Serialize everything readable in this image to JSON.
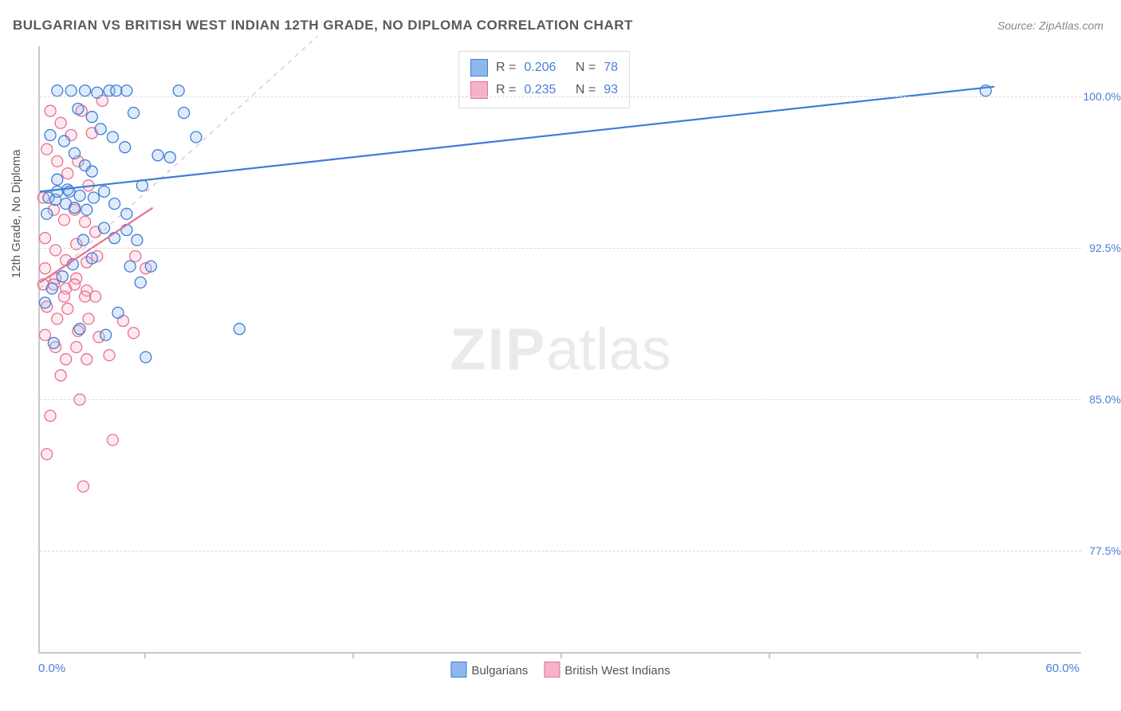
{
  "title": "BULGARIAN VS BRITISH WEST INDIAN 12TH GRADE, NO DIPLOMA CORRELATION CHART",
  "source": "Source: ZipAtlas.com",
  "yaxis_title": "12th Grade, No Diploma",
  "watermark_bold": "ZIP",
  "watermark_light": "atlas",
  "chart": {
    "type": "scatter",
    "background_color": "#ffffff",
    "grid_color": "#d8d8d8",
    "axis_color": "#c9c9c9",
    "tick_label_color": "#4a7fd6",
    "tick_fontsize": 14,
    "title_color": "#5a5a5a",
    "title_fontsize": 17,
    "xlim": [
      0,
      60
    ],
    "ylim": [
      72.5,
      102.5
    ],
    "ytick_step": 7.5,
    "ytick_labels": [
      "77.5%",
      "85.0%",
      "92.5%",
      "100.0%"
    ],
    "ytick_values": [
      77.5,
      85.0,
      92.5,
      100.0
    ],
    "xtick_positions": [
      6,
      18,
      30,
      42,
      54
    ],
    "xlabel_min": "0.0%",
    "xlabel_max": "60.0%",
    "marker_radius": 7,
    "marker_stroke_width": 1.3,
    "marker_fill_opacity": 0.28,
    "trend_line_width": 2.2
  },
  "stats": {
    "series1": {
      "R_label": "R =",
      "R": "0.206",
      "N_label": "N =",
      "N": "78"
    },
    "series2": {
      "R_label": "R =",
      "R": "0.235",
      "N_label": "N =",
      "N": "93"
    }
  },
  "series": [
    {
      "name": "Bulgarians",
      "color_stroke": "#3d7dd8",
      "color_fill": "#8fb7ec",
      "trend": {
        "x1": 0,
        "y1": 95.3,
        "x2": 55,
        "y2": 100.5
      },
      "points": [
        [
          1.0,
          100.3
        ],
        [
          1.8,
          100.3
        ],
        [
          2.6,
          100.3
        ],
        [
          3.3,
          100.2
        ],
        [
          4.0,
          100.3
        ],
        [
          2.2,
          99.4
        ],
        [
          3.0,
          99.0
        ],
        [
          4.4,
          100.3
        ],
        [
          5.0,
          100.3
        ],
        [
          5.4,
          99.2
        ],
        [
          0.6,
          98.1
        ],
        [
          1.4,
          97.8
        ],
        [
          2.0,
          97.2
        ],
        [
          2.6,
          96.6
        ],
        [
          1.0,
          95.9
        ],
        [
          1.6,
          95.4
        ],
        [
          0.5,
          95.0
        ],
        [
          2.3,
          95.1
        ],
        [
          3.1,
          95.0
        ],
        [
          0.9,
          94.9
        ],
        [
          1.5,
          94.7
        ],
        [
          2.0,
          94.5
        ],
        [
          2.7,
          94.4
        ],
        [
          0.4,
          94.2
        ],
        [
          1.0,
          95.3
        ],
        [
          1.7,
          95.3
        ],
        [
          3.7,
          95.3
        ],
        [
          4.3,
          94.7
        ],
        [
          5.0,
          94.2
        ],
        [
          5.9,
          95.6
        ],
        [
          6.8,
          97.1
        ],
        [
          7.5,
          97.0
        ],
        [
          8.0,
          100.3
        ],
        [
          8.3,
          99.2
        ],
        [
          9.0,
          98.0
        ],
        [
          3.5,
          98.4
        ],
        [
          4.2,
          98.0
        ],
        [
          4.9,
          97.5
        ],
        [
          3.0,
          96.3
        ],
        [
          3.7,
          93.5
        ],
        [
          4.3,
          93.0
        ],
        [
          5.0,
          93.4
        ],
        [
          5.6,
          92.9
        ],
        [
          3.0,
          92.0
        ],
        [
          2.5,
          92.9
        ],
        [
          1.9,
          91.7
        ],
        [
          1.3,
          91.1
        ],
        [
          0.7,
          90.5
        ],
        [
          0.3,
          89.8
        ],
        [
          5.2,
          91.6
        ],
        [
          5.8,
          90.8
        ],
        [
          6.4,
          91.6
        ],
        [
          4.5,
          89.3
        ],
        [
          3.8,
          88.2
        ],
        [
          2.3,
          88.5
        ],
        [
          11.5,
          88.5
        ],
        [
          6.1,
          87.1
        ],
        [
          0.8,
          87.8
        ],
        [
          54.5,
          100.3
        ]
      ]
    },
    {
      "name": "British West Indians",
      "color_stroke": "#e86f91",
      "color_fill": "#f4b3c6",
      "trend": {
        "x1": 0,
        "y1": 90.8,
        "x2": 6.5,
        "y2": 94.5
      },
      "points": [
        [
          0.6,
          99.3
        ],
        [
          1.2,
          98.7
        ],
        [
          1.8,
          98.1
        ],
        [
          2.4,
          99.3
        ],
        [
          3.0,
          98.2
        ],
        [
          3.6,
          99.8
        ],
        [
          0.4,
          97.4
        ],
        [
          1.0,
          96.8
        ],
        [
          1.6,
          96.2
        ],
        [
          2.2,
          96.8
        ],
        [
          2.8,
          95.6
        ],
        [
          0.2,
          95.0
        ],
        [
          0.8,
          94.4
        ],
        [
          1.4,
          93.9
        ],
        [
          2.0,
          94.4
        ],
        [
          2.6,
          93.8
        ],
        [
          3.2,
          93.3
        ],
        [
          0.3,
          93.0
        ],
        [
          0.9,
          92.4
        ],
        [
          1.5,
          91.9
        ],
        [
          2.1,
          92.7
        ],
        [
          2.7,
          91.8
        ],
        [
          3.3,
          92.1
        ],
        [
          0.3,
          91.5
        ],
        [
          0.9,
          91.0
        ],
        [
          1.5,
          90.5
        ],
        [
          2.1,
          91.0
        ],
        [
          2.7,
          90.4
        ],
        [
          0.2,
          90.7
        ],
        [
          0.8,
          90.7
        ],
        [
          1.4,
          90.1
        ],
        [
          2.0,
          90.7
        ],
        [
          2.6,
          90.1
        ],
        [
          3.2,
          90.1
        ],
        [
          0.4,
          89.6
        ],
        [
          1.0,
          89.0
        ],
        [
          1.6,
          89.5
        ],
        [
          2.2,
          88.4
        ],
        [
          2.8,
          89.0
        ],
        [
          3.4,
          88.1
        ],
        [
          0.3,
          88.2
        ],
        [
          0.9,
          87.6
        ],
        [
          1.5,
          87.0
        ],
        [
          2.1,
          87.6
        ],
        [
          2.7,
          87.0
        ],
        [
          4.8,
          88.9
        ],
        [
          5.4,
          88.3
        ],
        [
          5.5,
          92.1
        ],
        [
          6.1,
          91.5
        ],
        [
          4.0,
          87.2
        ],
        [
          1.2,
          86.2
        ],
        [
          2.3,
          85.0
        ],
        [
          0.6,
          84.2
        ],
        [
          4.2,
          83.0
        ],
        [
          0.4,
          82.3
        ],
        [
          2.5,
          80.7
        ]
      ]
    }
  ],
  "legend": {
    "series1_label": "Bulgarians",
    "series2_label": "British West Indians"
  }
}
